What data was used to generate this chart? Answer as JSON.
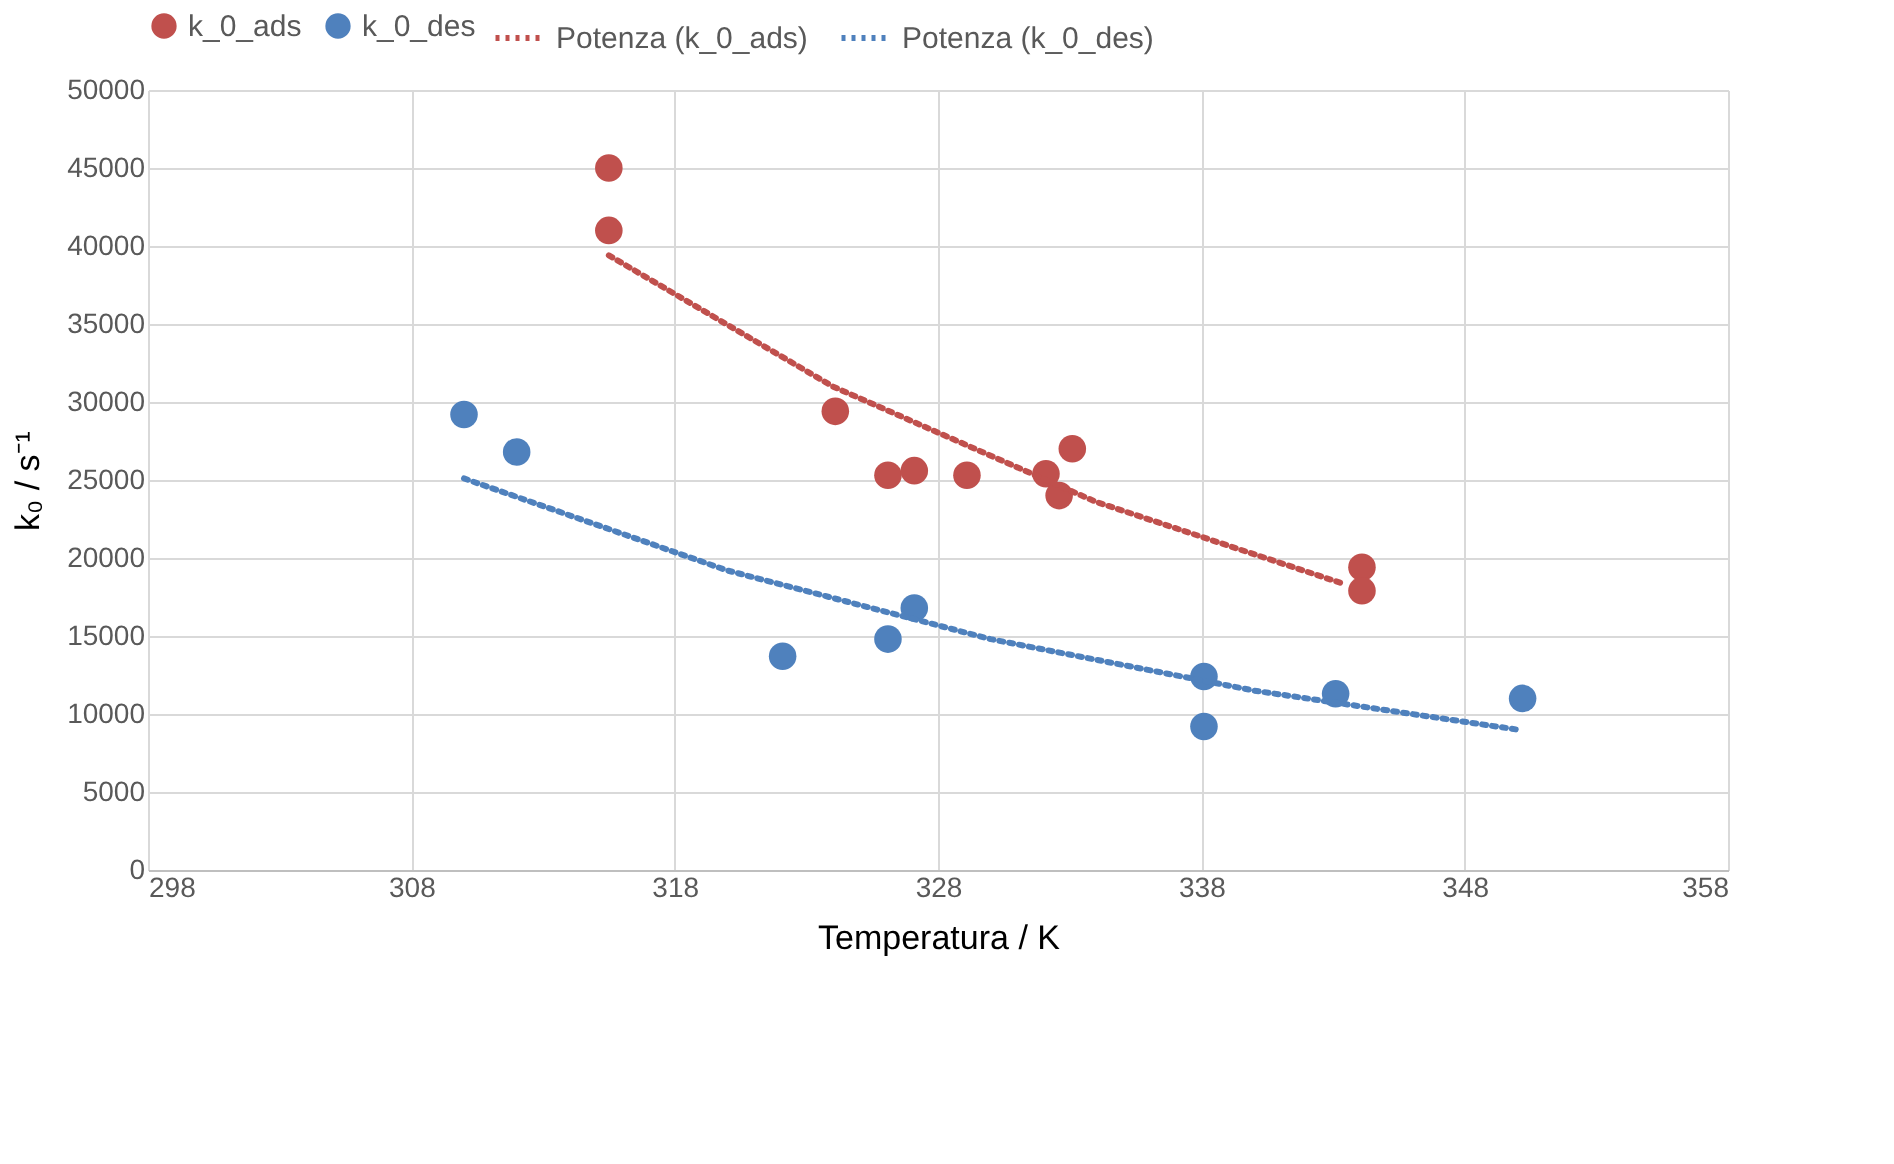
{
  "chart_data": {
    "type": "scatter",
    "xlabel": "Temperatura / K",
    "ylabel": "k₀ / s⁻¹",
    "xlim": [
      298,
      358
    ],
    "xticks": [
      298,
      308,
      318,
      328,
      338,
      348,
      358
    ],
    "ylim": [
      0,
      50000
    ],
    "yticks": [
      0,
      5000,
      10000,
      15000,
      20000,
      25000,
      30000,
      35000,
      40000,
      45000,
      50000
    ],
    "grid": true,
    "legend": "top",
    "series": [
      {
        "name": "k_0_ads",
        "marker": "circle",
        "color": "#c0504d",
        "x": [
          315.5,
          315.5,
          324.1,
          326.1,
          327.1,
          329.1,
          332.1,
          332.6,
          333.1,
          344.1,
          344.1
        ],
        "values": [
          45000,
          41000,
          29400,
          25300,
          25600,
          25300,
          25400,
          24000,
          27000,
          19400,
          17900
        ]
      },
      {
        "name": "k_0_des",
        "marker": "circle",
        "color": "#4f81bd",
        "x": [
          310.0,
          312.0,
          322.1,
          326.1,
          327.1,
          338.1,
          338.1,
          343.1,
          350.2
        ],
        "values": [
          29200,
          26800,
          13700,
          14800,
          16800,
          12400,
          9200,
          11300,
          11000
        ]
      },
      {
        "name": "Potenza (k_0_ads)",
        "type": "line",
        "marker": "none",
        "line_style": "dotted",
        "color": "#c0504d",
        "x": [
          315.5,
          324,
          334,
          343.3
        ],
        "values": [
          39400,
          31000,
          23600,
          18400
        ]
      },
      {
        "name": "Potenza (k_0_des)",
        "type": "line",
        "marker": "none",
        "line_style": "dotted",
        "color": "#4f81bd",
        "x": [
          310,
          320,
          330,
          340,
          350
        ],
        "values": [
          25100,
          19200,
          14800,
          11500,
          9000
        ]
      }
    ]
  }
}
